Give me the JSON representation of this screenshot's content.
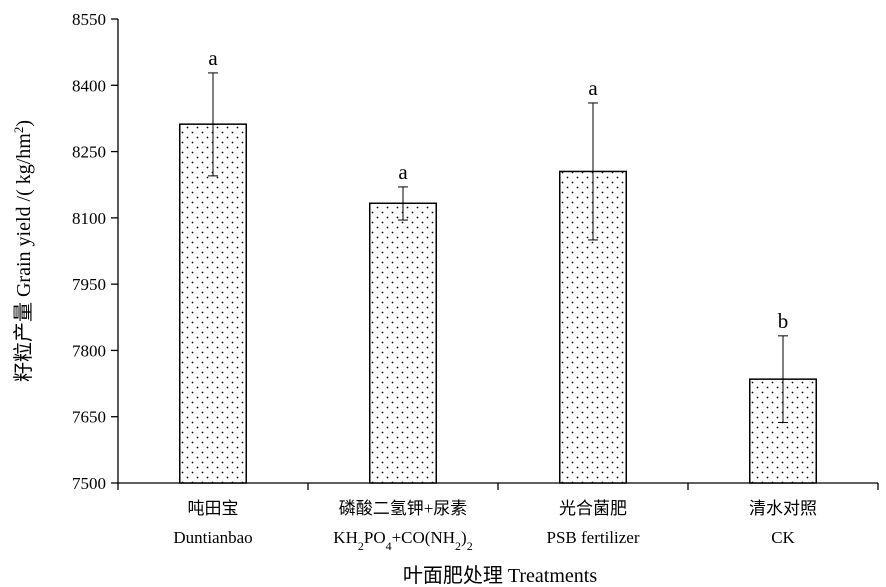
{
  "chart_data": {
    "type": "bar",
    "categories": [
      {
        "zh": "吨田宝",
        "en": "Duntianbao"
      },
      {
        "zh": "磷酸二氢钾+尿素",
        "en_parts": [
          [
            "KH",
            false
          ],
          [
            "2",
            true
          ],
          [
            "PO",
            false
          ],
          [
            "4",
            true
          ],
          [
            "+CO(NH",
            false
          ],
          [
            "2",
            true
          ],
          [
            ")",
            false
          ],
          [
            "2",
            true
          ]
        ]
      },
      {
        "zh": "光合菌肥",
        "en": "PSB fertilizer"
      },
      {
        "zh": "清水对照",
        "en": "CK"
      }
    ],
    "values": [
      8312,
      8133,
      8205,
      7735
    ],
    "error_upper": [
      8428,
      8170,
      8360,
      7833
    ],
    "error_lower": [
      8195,
      8095,
      8050,
      7637
    ],
    "significance": [
      "a",
      "a",
      "a",
      "b"
    ],
    "ylim": [
      7500,
      8550
    ],
    "yticks": [
      "7500",
      "7650",
      "7800",
      "7950",
      "8100",
      "8250",
      "8400",
      "8550"
    ],
    "ylabel_parts": [
      [
        "籽粒产量 Grain yield /( kg/hm",
        false
      ],
      [
        "2",
        "sup"
      ],
      [
        ")",
        false
      ]
    ],
    "xlabel": "叶面肥处理 Treatments",
    "bar_pattern": "dotted",
    "bar_color": "#ffffff",
    "grid": false
  }
}
